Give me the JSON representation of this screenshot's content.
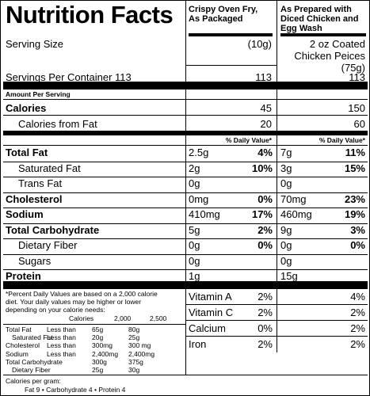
{
  "header": {
    "title": "Nutrition Facts",
    "col1": [
      "Crispy Oven Fry,",
      "As Packaged"
    ],
    "col2": [
      "As Prepared with",
      "Diced Chicken and",
      "Egg Wash"
    ]
  },
  "serving": {
    "label": "Serving Size",
    "col1": "(10g)",
    "col2": [
      "2 oz Coated",
      "Chicken Peices",
      "(75g)"
    ]
  },
  "servings_per": {
    "label": "Servings Per Container 113",
    "col1": "113",
    "col2": "113"
  },
  "amount_per_serving": "Amount Per Serving",
  "calories": {
    "label": "Calories",
    "col1": "45",
    "col2": "150"
  },
  "calories_fat": {
    "label": "Calories from Fat",
    "col1": "20",
    "col2": "60"
  },
  "dv_header": "% Daily Value*",
  "nutrients": [
    {
      "label": "Total Fat",
      "bold": true,
      "c1_amt": "2.5g",
      "c1_dv": "4%",
      "c2_amt": "7g",
      "c2_dv": "11%"
    },
    {
      "label": "Saturated Fat",
      "bold": false,
      "c1_amt": "2g",
      "c1_dv": "10%",
      "c2_amt": "3g",
      "c2_dv": "15%"
    },
    {
      "label": "Trans Fat",
      "bold": false,
      "c1_amt": "0g",
      "c1_dv": "",
      "c2_amt": "0g",
      "c2_dv": ""
    },
    {
      "label": "Cholesterol",
      "bold": true,
      "c1_amt": "0mg",
      "c1_dv": "0%",
      "c2_amt": "70mg",
      "c2_dv": "23%"
    },
    {
      "label": "Sodium",
      "bold": true,
      "c1_amt": "410mg",
      "c1_dv": "17%",
      "c2_amt": "460mg",
      "c2_dv": "19%"
    },
    {
      "label": "Total Carbohydrate",
      "bold": true,
      "c1_amt": "5g",
      "c1_dv": "2%",
      "c2_amt": "9g",
      "c2_dv": "3%"
    },
    {
      "label": "Dietary Fiber",
      "bold": false,
      "c1_amt": "0g",
      "c1_dv": "0%",
      "c2_amt": "0g",
      "c2_dv": "0%"
    },
    {
      "label": "Sugars",
      "bold": false,
      "c1_amt": "0g",
      "c1_dv": "",
      "c2_amt": "0g",
      "c2_dv": ""
    },
    {
      "label": "Protein",
      "bold": true,
      "c1_amt": "1g",
      "c1_dv": "",
      "c2_amt": "15g",
      "c2_dv": ""
    }
  ],
  "vitamins": [
    {
      "label": "Vitamin A",
      "c1": "2%",
      "c2": "4%"
    },
    {
      "label": "Vitamin C",
      "c1": "2%",
      "c2": "2%"
    },
    {
      "label": "Calcium",
      "c1": "0%",
      "c2": "2%"
    },
    {
      "label": "Iron",
      "c1": "2%",
      "c2": "2%"
    }
  ],
  "footnote": {
    "intro": [
      "*Percent Daily Values are based on a 2,000 calorie",
      "diet. Your daily values may be higher or lower",
      "depending on your calorie needs:"
    ],
    "calories_row": [
      "Calories",
      "2,000",
      "2,500"
    ],
    "rows": [
      [
        "Total Fat",
        "Less than",
        "65g",
        "80g"
      ],
      [
        "Saturated Fat",
        "Less than",
        "20g",
        "25g"
      ],
      [
        "Cholesterol",
        "Less than",
        "300mg",
        "300 mg"
      ],
      [
        "Sodium",
        "Less than",
        "2,400mg",
        "2,400mg"
      ],
      [
        "Total Carbohydrate",
        "",
        "300g",
        "375g"
      ],
      [
        "Dietary Fiber",
        "",
        "25g",
        "30g"
      ]
    ],
    "per_gram_label": "Calories per gram:",
    "per_gram": "Fat 9   •   Carbohydrate 4   •   Protein 4"
  }
}
